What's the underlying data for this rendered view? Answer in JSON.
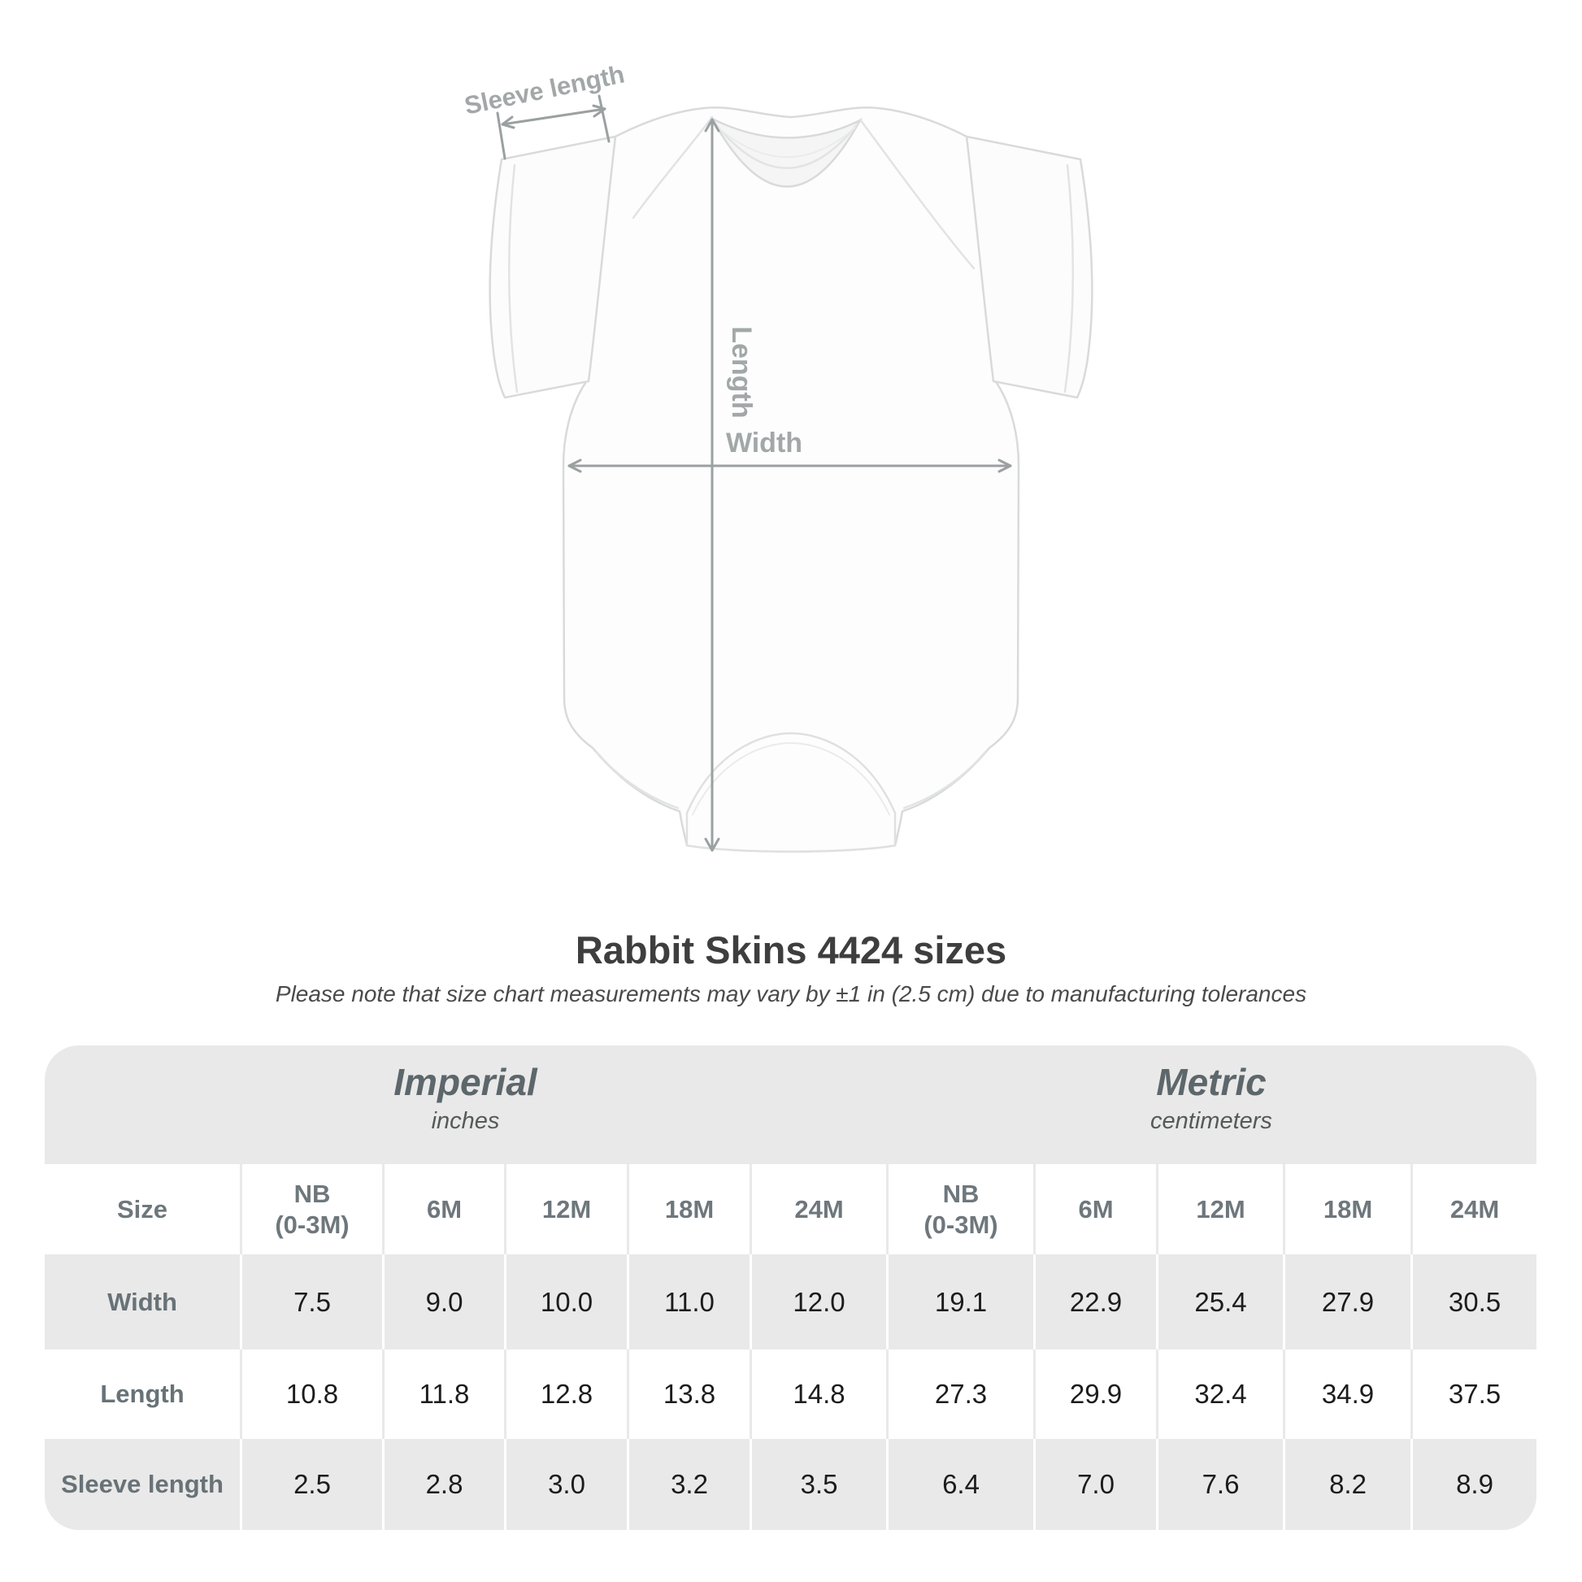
{
  "title": "Rabbit Skins 4424 sizes",
  "subtitle": "Please note that size chart measurements may vary by ±1 in (2.5 cm) due to manufacturing tolerances",
  "diagram": {
    "labels": {
      "sleeve_length": "Sleeve length",
      "length": "Length",
      "width": "Width"
    }
  },
  "colors": {
    "table_band": "#e9e9e9",
    "table_alt_row": "#e9e9e9",
    "divider_on_white": "#e9e9e9",
    "divider_on_gray": "#ffffff",
    "unit_heading_text": "#5d676b",
    "unit_subheading_text": "#55595a",
    "header_cell_text": "#6e777c",
    "value_text": "#1c1c1c",
    "title_text": "#3e3e3e",
    "subtitle_text": "#4a4a4a",
    "arrow": "#9ba0a1",
    "diagram_label": "#a2a7a8",
    "garment_outline": "#d8dadb"
  },
  "chart_data": {
    "type": "table",
    "title": "Rabbit Skins 4424 sizes",
    "unit_groups": [
      {
        "label": "Imperial",
        "sublabel": "inches"
      },
      {
        "label": "Metric",
        "sublabel": "centimeters"
      }
    ],
    "sizes": [
      "NB (0-3M)",
      "6M",
      "12M",
      "18M",
      "24M"
    ],
    "size_header": {
      "label": "Size",
      "columns": [
        {
          "l1": "NB",
          "l2": "(0-3M)"
        },
        {
          "l1": "6M"
        },
        {
          "l1": "12M"
        },
        {
          "l1": "18M"
        },
        {
          "l1": "24M"
        },
        {
          "l1": "NB",
          "l2": "(0-3M)"
        },
        {
          "l1": "6M"
        },
        {
          "l1": "12M"
        },
        {
          "l1": "18M"
        },
        {
          "l1": "24M"
        }
      ]
    },
    "rows": [
      {
        "label": "Width",
        "imperial": [
          "7.5",
          "9.0",
          "10.0",
          "11.0",
          "12.0"
        ],
        "metric": [
          "19.1",
          "22.9",
          "25.4",
          "27.9",
          "30.5"
        ]
      },
      {
        "label": "Length",
        "imperial": [
          "10.8",
          "11.8",
          "12.8",
          "13.8",
          "14.8"
        ],
        "metric": [
          "27.3",
          "29.9",
          "32.4",
          "34.9",
          "37.5"
        ]
      },
      {
        "label": "Sleeve length",
        "imperial": [
          "2.5",
          "2.8",
          "3.0",
          "3.2",
          "3.5"
        ],
        "metric": [
          "6.4",
          "7.0",
          "7.6",
          "8.2",
          "8.9"
        ]
      }
    ]
  }
}
